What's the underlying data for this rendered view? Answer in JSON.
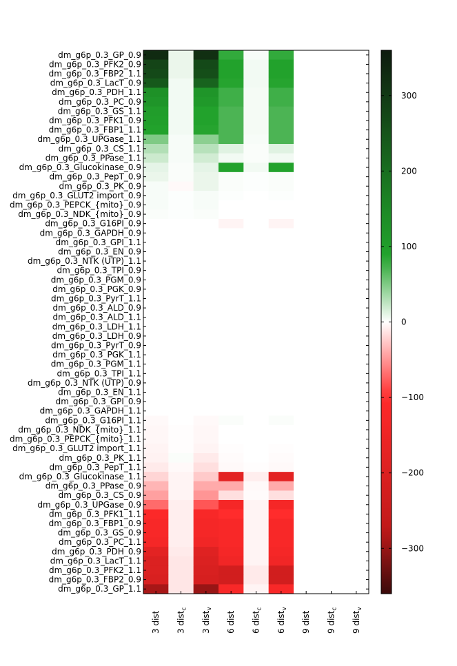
{
  "chart_data": {
    "type": "heatmap",
    "rows": [
      "dm_g6p_0.3_GP_0.9",
      "dm_g6p_0.3_PFK2_0.9",
      "dm_g6p_0.3_FBP2_1.1",
      "dm_g6p_0.3_LacT_0.9",
      "dm_g6p_0.3_PDH_1.1",
      "dm_g6p_0.3_PC_0.9",
      "dm_g6p_0.3_GS_1.1",
      "dm_g6p_0.3_PFK1_0.9",
      "dm_g6p_0.3_FBP1_1.1",
      "dm_g6p_0.3_UPGase_1.1",
      "dm_g6p_0.3_CS_1.1",
      "dm_g6p_0.3_PPase_1.1",
      "dm_g6p_0.3_Glucokinase_0.9",
      "dm_g6p_0.3_PepT_0.9",
      "dm_g6p_0.3_PK_0.9",
      "dm_g6p_0.3_GLUT2 import_0.9",
      "dm_g6p_0.3_PEPCK_{mito}_0.9",
      "dm_g6p_0.3_NDK_{mito}_0.9",
      "dm_g6p_0.3_G16PI_0.9",
      "dm_g6p_0.3_GAPDH_0.9",
      "dm_g6p_0.3_GPI_1.1",
      "dm_g6p_0.3_EN_0.9",
      "dm_g6p_0.3_NTK (UTP)_1.1",
      "dm_g6p_0.3_TPI_0.9",
      "dm_g6p_0.3_PGM_0.9",
      "dm_g6p_0.3_PGK_0.9",
      "dm_g6p_0.3_PyrT_1.1",
      "dm_g6p_0.3_ALD_0.9",
      "dm_g6p_0.3_ALD_1.1",
      "dm_g6p_0.3_LDH_1.1",
      "dm_g6p_0.3_LDH_0.9",
      "dm_g6p_0.3_PyrT_0.9",
      "dm_g6p_0.3_PGK_1.1",
      "dm_g6p_0.3_PGM_1.1",
      "dm_g6p_0.3_TPI_1.1",
      "dm_g6p_0.3_NTK (UTP)_0.9",
      "dm_g6p_0.3_EN_1.1",
      "dm_g6p_0.3_GPI_0.9",
      "dm_g6p_0.3_GAPDH_1.1",
      "dm_g6p_0.3_G16PI_1.1",
      "dm_g6p_0.3_NDK_{mito}_1.1",
      "dm_g6p_0.3_PEPCK_{mito}_1.1",
      "dm_g6p_0.3_GLUT2 import_1.1",
      "dm_g6p_0.3_PK_1.1",
      "dm_g6p_0.3_PepT_1.1",
      "dm_g6p_0.3_Glucokinase_1.1",
      "dm_g6p_0.3_PPase_0.9",
      "dm_g6p_0.3_CS_0.9",
      "dm_g6p_0.3_UPGase_0.9",
      "dm_g6p_0.3_PFK1_1.1",
      "dm_g6p_0.3_FBP1_0.9",
      "dm_g6p_0.3_GS_0.9",
      "dm_g6p_0.3_PC_1.1",
      "dm_g6p_0.3_PDH_0.9",
      "dm_g6p_0.3_LacT_1.1",
      "dm_g6p_0.3_PFK2_1.1",
      "dm_g6p_0.3_FBP2_0.9",
      "dm_g6p_0.3_GP_1.1"
    ],
    "columns": [
      {
        "main": "3 dist",
        "sub": ""
      },
      {
        "main": "3 dist",
        "sub": "c"
      },
      {
        "main": "3 dist",
        "sub": "v"
      },
      {
        "main": "6 dist",
        "sub": ""
      },
      {
        "main": "6 dist",
        "sub": "c"
      },
      {
        "main": "6 dist",
        "sub": "v"
      },
      {
        "main": "9 dist",
        "sub": ""
      },
      {
        "main": "9 dist",
        "sub": "c"
      },
      {
        "main": "9 dist",
        "sub": "v"
      }
    ],
    "values": [
      [
        330,
        8,
        320,
        80,
        3,
        80,
        0,
        0,
        0
      ],
      [
        280,
        8,
        270,
        90,
        5,
        90,
        0,
        0,
        0
      ],
      [
        270,
        8,
        260,
        90,
        5,
        90,
        0,
        0,
        0
      ],
      [
        240,
        5,
        220,
        85,
        5,
        85,
        0,
        0,
        0
      ],
      [
        130,
        5,
        120,
        75,
        4,
        75,
        0,
        0,
        0
      ],
      [
        120,
        5,
        110,
        75,
        4,
        75,
        0,
        0,
        0
      ],
      [
        100,
        5,
        90,
        70,
        4,
        70,
        0,
        0,
        0
      ],
      [
        95,
        5,
        90,
        70,
        4,
        70,
        0,
        0,
        0
      ],
      [
        90,
        5,
        85,
        70,
        4,
        70,
        0,
        0,
        0
      ],
      [
        50,
        3,
        45,
        70,
        3,
        70,
        0,
        0,
        0
      ],
      [
        30,
        3,
        28,
        12,
        2,
        12,
        0,
        0,
        0
      ],
      [
        20,
        3,
        18,
        5,
        2,
        5,
        0,
        0,
        0
      ],
      [
        10,
        2,
        10,
        90,
        5,
        90,
        0,
        0,
        0
      ],
      [
        8,
        2,
        8,
        2,
        1,
        2,
        0,
        0,
        0
      ],
      [
        3,
        -3,
        8,
        2,
        1,
        2,
        0,
        0,
        0
      ],
      [
        3,
        1,
        3,
        1,
        0,
        1,
        0,
        0,
        0
      ],
      [
        3,
        1,
        3,
        0,
        0,
        0,
        0,
        0,
        0
      ],
      [
        2,
        1,
        2,
        0,
        0,
        0,
        0,
        0,
        0
      ],
      [
        0,
        0,
        0,
        -5,
        0,
        -5,
        0,
        0,
        0
      ],
      [
        0,
        0,
        0,
        0,
        0,
        0,
        0,
        0,
        0
      ],
      [
        0,
        0,
        0,
        0,
        0,
        0,
        0,
        0,
        0
      ],
      [
        0,
        0,
        0,
        0,
        0,
        0,
        0,
        0,
        0
      ],
      [
        0,
        0,
        0,
        0,
        0,
        0,
        0,
        0,
        0
      ],
      [
        0,
        0,
        0,
        0,
        0,
        0,
        0,
        0,
        0
      ],
      [
        0,
        0,
        0,
        0,
        0,
        0,
        0,
        0,
        0
      ],
      [
        0,
        0,
        0,
        0,
        0,
        0,
        0,
        0,
        0
      ],
      [
        0,
        0,
        0,
        0,
        0,
        0,
        0,
        0,
        0
      ],
      [
        0,
        0,
        0,
        0,
        0,
        0,
        0,
        0,
        0
      ],
      [
        0,
        0,
        0,
        0,
        0,
        0,
        0,
        0,
        0
      ],
      [
        0,
        0,
        0,
        0,
        0,
        0,
        0,
        0,
        0
      ],
      [
        0,
        0,
        0,
        0,
        0,
        0,
        0,
        0,
        0
      ],
      [
        0,
        0,
        0,
        0,
        0,
        0,
        0,
        0,
        0
      ],
      [
        0,
        0,
        0,
        0,
        0,
        0,
        0,
        0,
        0
      ],
      [
        0,
        0,
        0,
        0,
        0,
        0,
        0,
        0,
        0
      ],
      [
        0,
        0,
        0,
        0,
        0,
        0,
        0,
        0,
        0
      ],
      [
        0,
        0,
        0,
        0,
        0,
        0,
        0,
        0,
        0
      ],
      [
        0,
        0,
        0,
        0,
        0,
        0,
        0,
        0,
        0
      ],
      [
        0,
        0,
        0,
        0,
        0,
        0,
        0,
        0,
        0
      ],
      [
        0,
        0,
        0,
        0,
        0,
        0,
        0,
        0,
        0
      ],
      [
        -3,
        0,
        -3,
        2,
        0,
        2,
        0,
        0,
        0
      ],
      [
        -4,
        -1,
        -4,
        0,
        0,
        0,
        0,
        0,
        0
      ],
      [
        -4,
        -1,
        -4,
        0,
        0,
        0,
        0,
        0,
        0
      ],
      [
        -5,
        -1,
        -5,
        -1,
        0,
        -1,
        0,
        0,
        0
      ],
      [
        -6,
        2,
        -10,
        -2,
        0,
        -2,
        0,
        0,
        0
      ],
      [
        -10,
        -3,
        -15,
        -3,
        -1,
        -3,
        0,
        0,
        0
      ],
      [
        -20,
        -5,
        -25,
        -180,
        -8,
        -180,
        0,
        0,
        0
      ],
      [
        -35,
        -5,
        -40,
        -40,
        -3,
        -40,
        0,
        0,
        0
      ],
      [
        -45,
        -5,
        -50,
        -15,
        -2,
        -15,
        0,
        0,
        0
      ],
      [
        -70,
        -8,
        -80,
        -130,
        -5,
        -130,
        0,
        0,
        0
      ],
      [
        -110,
        -8,
        -120,
        -100,
        -5,
        -100,
        0,
        0,
        0
      ],
      [
        -120,
        -8,
        -130,
        -120,
        -5,
        -120,
        0,
        0,
        0
      ],
      [
        -120,
        -8,
        -130,
        -120,
        -5,
        -120,
        0,
        0,
        0
      ],
      [
        -130,
        -8,
        -140,
        -120,
        -5,
        -120,
        0,
        0,
        0
      ],
      [
        -180,
        -10,
        -190,
        -130,
        -5,
        -130,
        0,
        0,
        0
      ],
      [
        -200,
        -12,
        -200,
        -140,
        -5,
        -140,
        0,
        0,
        0
      ],
      [
        -200,
        -12,
        -210,
        -230,
        -10,
        -230,
        0,
        0,
        0
      ],
      [
        -210,
        -12,
        -215,
        -230,
        -10,
        -230,
        0,
        0,
        0
      ],
      [
        -290,
        -12,
        -300,
        -120,
        -5,
        -120,
        0,
        0,
        0
      ]
    ],
    "colorbar": {
      "min": -360,
      "max": 360,
      "ticks": [
        -300,
        -200,
        -100,
        0,
        100,
        200,
        300
      ],
      "colors": [
        "#0e1a0e",
        "#1d8b26",
        "#22a32c",
        "#ffffff",
        "#ff2a2a",
        "#c11a1a",
        "#3a0a0a"
      ]
    }
  }
}
